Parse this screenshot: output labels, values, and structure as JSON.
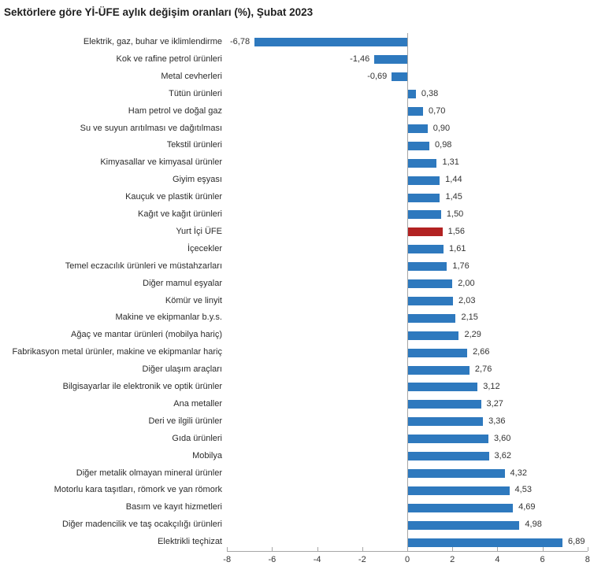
{
  "title": "Sektörlere göre Yİ-ÜFE aylık değişim oranları (%), Şubat 2023",
  "chart_data": {
    "type": "bar",
    "orientation": "horizontal",
    "title": "Sektörlere göre Yİ-ÜFE aylık değişim oranları (%), Şubat 2023",
    "xlabel": "",
    "ylabel": "",
    "xlim": [
      -8,
      8
    ],
    "x_ticks": [
      -8,
      -6,
      -4,
      -2,
      0,
      2,
      4,
      6,
      8
    ],
    "x_tick_labels": [
      "-8",
      "-6",
      "-4",
      "-2",
      "0",
      "2",
      "4",
      "6",
      "8"
    ],
    "grid": false,
    "legend": "none",
    "categories": [
      "Elektrik, gaz, buhar ve iklimlendirme",
      "Kok ve rafine petrol ürünleri",
      "Metal cevherleri",
      "Tütün ürünleri",
      "Ham petrol ve doğal gaz",
      "Su ve suyun arıtılması ve dağıtılması",
      "Tekstil ürünleri",
      "Kimyasallar ve kimyasal ürünler",
      "Giyim eşyası",
      "Kauçuk ve plastik ürünler",
      "Kağıt ve kağıt ürünleri",
      "Yurt İçi ÜFE",
      "İçecekler",
      "Temel eczacılık ürünleri ve müstahzarları",
      "Diğer mamul eşyalar",
      "Kömür ve linyit",
      "Makine ve ekipmanlar b.y.s.",
      "Ağaç ve mantar ürünleri (mobilya hariç)",
      "Fabrikasyon metal ürünler, makine ve ekipmanlar hariç",
      "Diğer ulaşım araçları",
      "Bilgisayarlar ile elektronik ve optik ürünler",
      "Ana metaller",
      "Deri ve ilgili ürünler",
      "Gıda ürünleri",
      "Mobilya",
      "Diğer metalik olmayan mineral ürünler",
      "Motorlu kara taşıtları, römork ve yan römork",
      "Basım ve kayıt hizmetleri",
      "Diğer madencilik ve taş ocakçılığı ürünleri",
      "Elektrikli teçhizat"
    ],
    "values": [
      -6.78,
      -1.46,
      -0.69,
      0.38,
      0.7,
      0.9,
      0.98,
      1.31,
      1.44,
      1.45,
      1.5,
      1.56,
      1.61,
      1.76,
      2.0,
      2.03,
      2.15,
      2.29,
      2.66,
      2.76,
      3.12,
      3.27,
      3.36,
      3.6,
      3.62,
      4.32,
      4.53,
      4.69,
      4.98,
      6.89
    ],
    "value_labels": [
      "-6,78",
      "-1,46",
      "-0,69",
      "0,38",
      "0,70",
      "0,90",
      "0,98",
      "1,31",
      "1,44",
      "1,45",
      "1,50",
      "1,56",
      "1,61",
      "1,76",
      "2,00",
      "2,03",
      "2,15",
      "2,29",
      "2,66",
      "2,76",
      "3,12",
      "3,27",
      "3,36",
      "3,60",
      "3,62",
      "4,32",
      "4,53",
      "4,69",
      "4,98",
      "6,89"
    ],
    "highlight_category": "Yurt İçi ÜFE",
    "highlight_index": 11,
    "colors": {
      "bar": "#2e79be",
      "highlight_bar": "#b22222",
      "axis": "#a6a6a6",
      "text": "#2b2b2b"
    }
  }
}
